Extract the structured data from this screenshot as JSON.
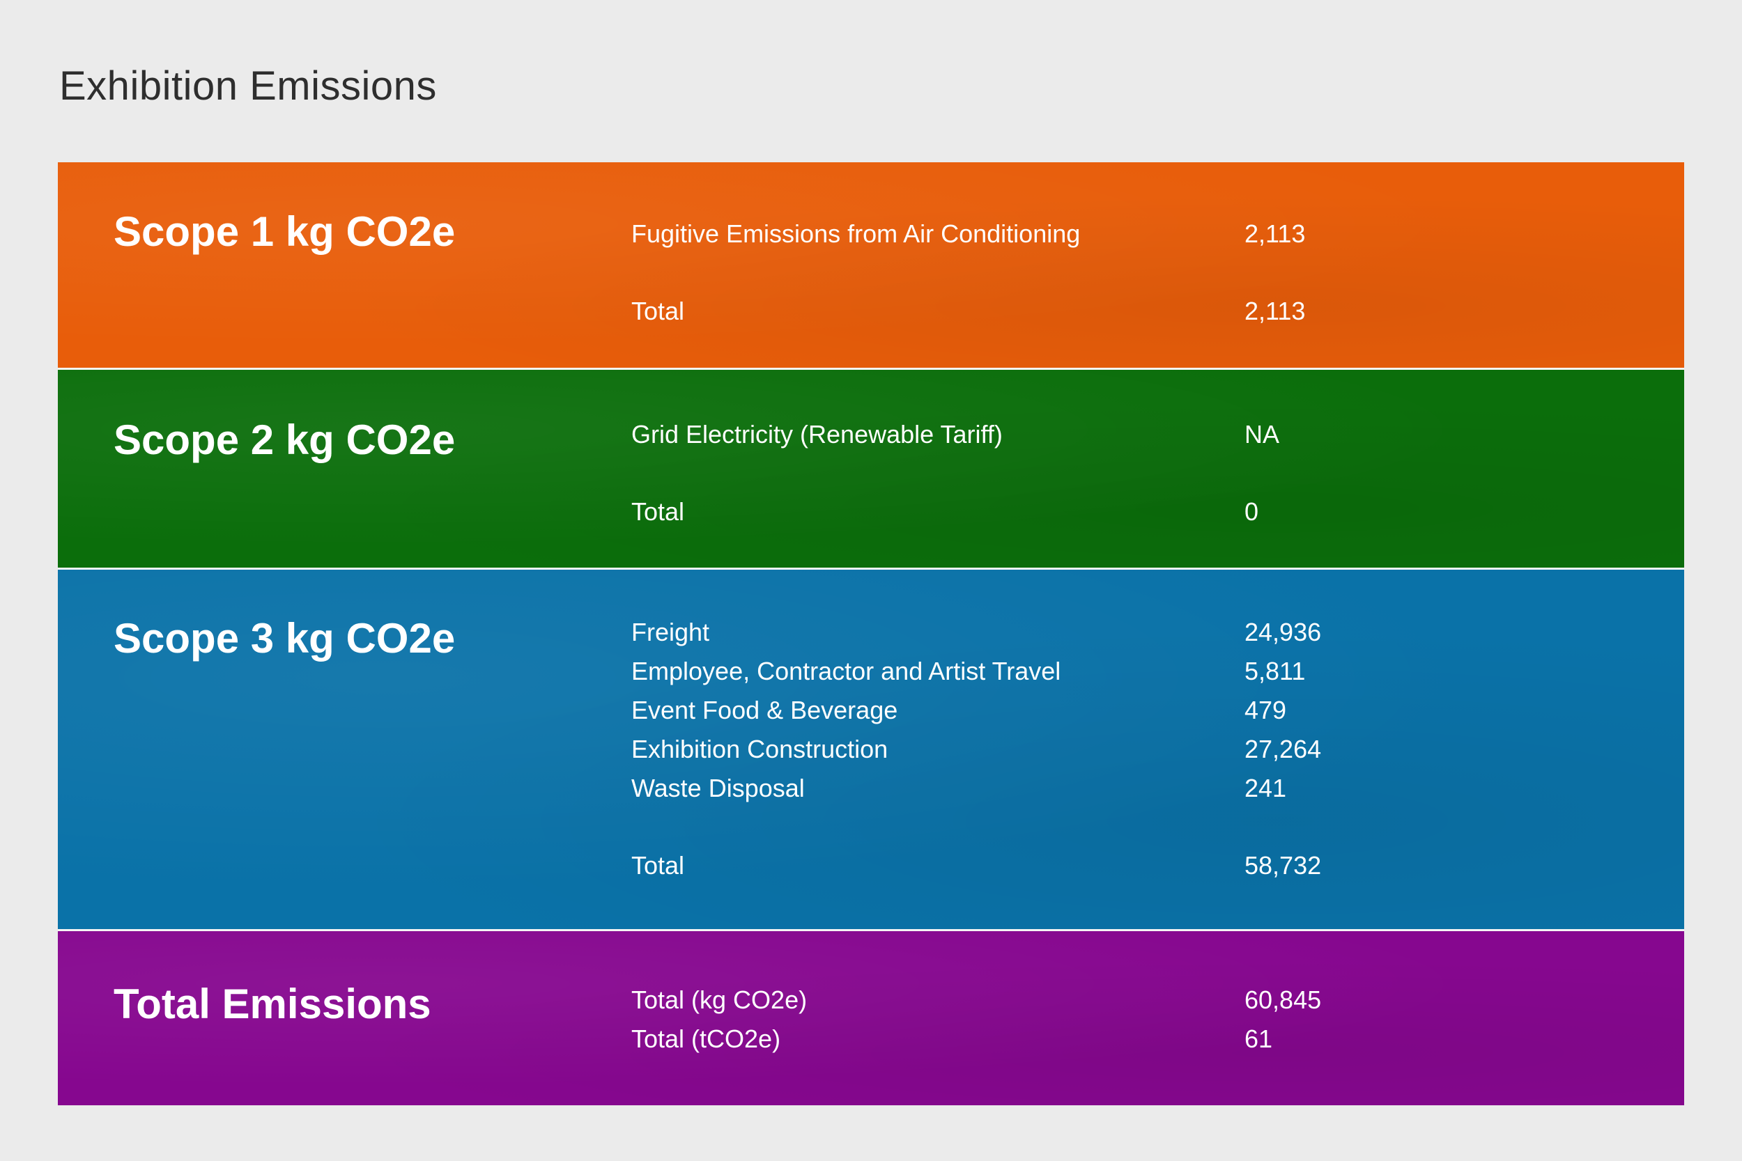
{
  "page_title": "Exhibition Emissions",
  "colors": {
    "scope1": "#e85d0a",
    "scope2": "#0b6e0b",
    "scope3": "#0a72a8",
    "total": "#86078f",
    "background": "#ebebeb"
  },
  "scope1": {
    "heading": "Scope 1 kg CO2e",
    "items": [
      {
        "label": "Fugitive Emissions from Air Conditioning",
        "value": "2,113"
      }
    ],
    "total": {
      "label": "Total",
      "value": "2,113"
    }
  },
  "scope2": {
    "heading": "Scope 2 kg CO2e",
    "items": [
      {
        "label": "Grid Electricity (Renewable Tariff)",
        "value": "NA"
      }
    ],
    "total": {
      "label": "Total",
      "value": "0"
    }
  },
  "scope3": {
    "heading": "Scope 3 kg CO2e",
    "items": [
      {
        "label": "Freight",
        "value": "24,936"
      },
      {
        "label": "Employee, Contractor and Artist Travel",
        "value": "5,811"
      },
      {
        "label": "Event Food & Beverage",
        "value": "479"
      },
      {
        "label": "Exhibition Construction",
        "value": "27,264"
      },
      {
        "label": "Waste Disposal",
        "value": "241"
      }
    ],
    "total": {
      "label": "Total",
      "value": "58,732"
    }
  },
  "total_emissions": {
    "heading": "Total Emissions",
    "items": [
      {
        "label": "Total (kg CO2e)",
        "value": "60,845"
      },
      {
        "label": "Total (tCO2e)",
        "value": "61"
      }
    ]
  }
}
